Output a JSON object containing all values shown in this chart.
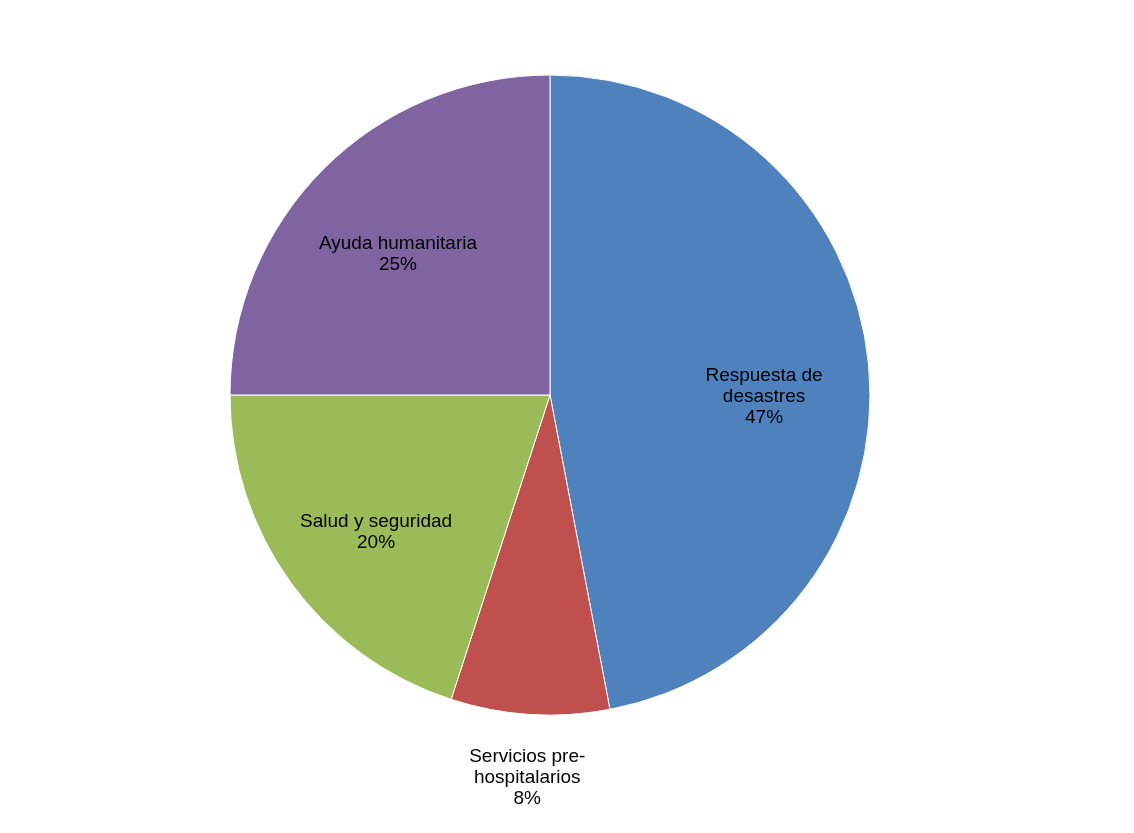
{
  "chart_data": {
    "type": "pie",
    "categories": [
      "Respuesta de desastres",
      "Servicios pre-hospitalarios",
      "Salud y seguridad",
      "Ayuda humanitaria"
    ],
    "values": [
      47,
      8,
      20,
      25
    ],
    "colors": [
      "#4f81bd",
      "#c0504d",
      "#9bbb59",
      "#8064a2"
    ],
    "value_labels": [
      "47%",
      "8%",
      "20%",
      "25%"
    ],
    "legend": false
  }
}
